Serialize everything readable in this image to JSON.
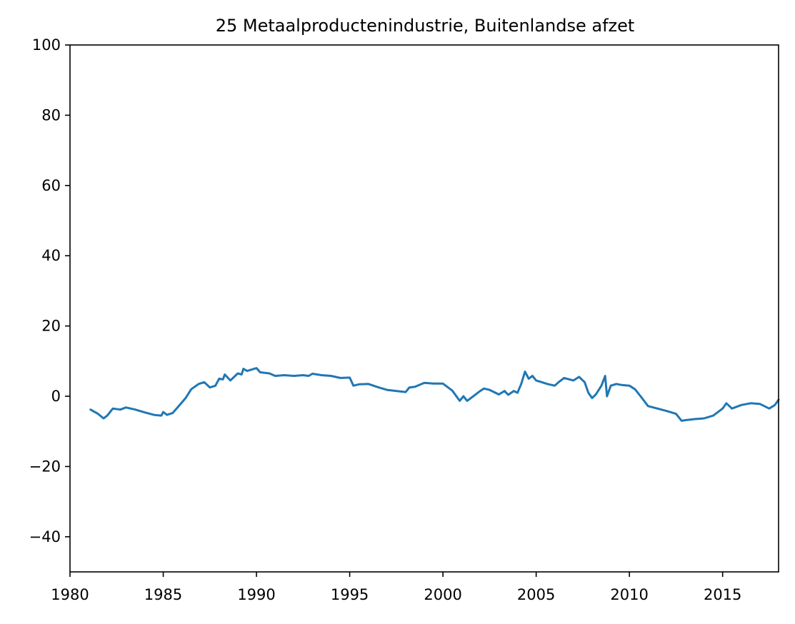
{
  "chart_data": {
    "type": "line",
    "title": "25 Metaalproductenindustrie, Buitenlandse afzet",
    "xlabel": "",
    "ylabel": "",
    "xlim": [
      1980,
      2018
    ],
    "ylim": [
      -50,
      100
    ],
    "xticks": [
      1980,
      1985,
      1990,
      1995,
      2000,
      2005,
      2010,
      2015
    ],
    "xtick_labels": [
      "1980",
      "1985",
      "1990",
      "1995",
      "2000",
      "2005",
      "2010",
      "2015"
    ],
    "yticks": [
      -40,
      -20,
      0,
      20,
      40,
      60,
      80,
      100
    ],
    "ytick_labels": [
      "−40",
      "−20",
      "0",
      "20",
      "40",
      "60",
      "80",
      "100"
    ],
    "grid": false,
    "legend": "none",
    "series": [
      {
        "color": "#1f77b4",
        "x": [
          1981.1,
          1981.5,
          1981.8,
          1982.0,
          1982.3,
          1982.7,
          1983.0,
          1983.5,
          1984.0,
          1984.5,
          1984.9,
          1985.0,
          1985.2,
          1985.5,
          1985.8,
          1986.2,
          1986.5,
          1986.9,
          1987.2,
          1987.5,
          1987.8,
          1988.0,
          1988.2,
          1988.3,
          1988.6,
          1989.0,
          1989.2,
          1989.3,
          1989.5,
          1990.0,
          1990.2,
          1990.7,
          1991.0,
          1991.5,
          1992.0,
          1992.5,
          1992.8,
          1993.0,
          1993.5,
          1994.0,
          1994.5,
          1995.0,
          1995.2,
          1995.5,
          1996.0,
          1996.5,
          1997.0,
          1997.5,
          1998.0,
          1998.2,
          1998.5,
          1999.0,
          1999.5,
          2000.0,
          2000.5,
          2000.9,
          2001.1,
          2001.3,
          2001.5,
          2002.0,
          2002.2,
          2002.5,
          2003.0,
          2003.3,
          2003.5,
          2003.8,
          2004.0,
          2004.2,
          2004.4,
          2004.6,
          2004.8,
          2005.0,
          2005.3,
          2005.6,
          2006.0,
          2006.2,
          2006.5,
          2007.0,
          2007.3,
          2007.6,
          2007.8,
          2008.0,
          2008.2,
          2008.5,
          2008.7,
          2008.8,
          2009.0,
          2009.3,
          2009.6,
          2010.0,
          2010.3,
          2010.6,
          2011.0,
          2011.5,
          2012.0,
          2012.5,
          2012.8,
          2013.0,
          2013.5,
          2014.0,
          2014.5,
          2015.0,
          2015.2,
          2015.5,
          2016.0,
          2016.5,
          2017.0,
          2017.5,
          2017.8,
          2018.0
        ],
        "y": [
          -3.8,
          -5.0,
          -6.3,
          -5.5,
          -3.5,
          -3.8,
          -3.2,
          -3.8,
          -4.6,
          -5.3,
          -5.5,
          -4.5,
          -5.3,
          -4.8,
          -3.0,
          -0.5,
          2.0,
          3.5,
          4.0,
          2.5,
          3.0,
          5.0,
          4.8,
          6.2,
          4.5,
          6.5,
          6.2,
          7.8,
          7.2,
          8.0,
          6.8,
          6.5,
          5.8,
          6.0,
          5.8,
          6.0,
          5.8,
          6.4,
          6.0,
          5.8,
          5.2,
          5.3,
          3.0,
          3.4,
          3.5,
          2.6,
          1.8,
          1.5,
          1.2,
          2.5,
          2.7,
          3.8,
          3.6,
          3.6,
          1.6,
          -1.3,
          0.0,
          -1.3,
          -0.5,
          1.5,
          2.2,
          1.8,
          0.5,
          1.5,
          0.4,
          1.5,
          1.0,
          3.5,
          7.0,
          5.0,
          5.8,
          4.5,
          4.0,
          3.5,
          3.0,
          4.0,
          5.2,
          4.5,
          5.5,
          4.0,
          1.0,
          -0.5,
          0.5,
          3.0,
          5.8,
          0.0,
          3.0,
          3.5,
          3.2,
          3.0,
          2.0,
          0.0,
          -2.8,
          -3.5,
          -4.2,
          -5.0,
          -7.0,
          -6.8,
          -6.5,
          -6.3,
          -5.5,
          -3.5,
          -2.0,
          -3.5,
          -2.5,
          -2.0,
          -2.2,
          -3.5,
          -2.5,
          -1.0
        ]
      }
    ]
  }
}
